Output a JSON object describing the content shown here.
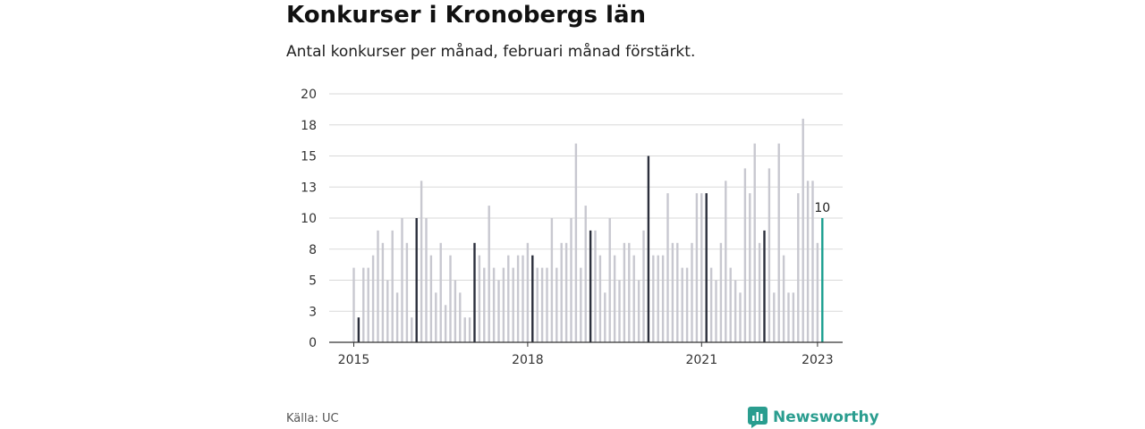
{
  "header": {
    "title": "Konkurser i Kronobergs län",
    "subtitle": "Antal konkurser per månad, februari månad förstärkt."
  },
  "footer": {
    "source": "Källa: UC",
    "brand": "Newsworthy"
  },
  "colors": {
    "bar": "#c8c8d0",
    "highlight": "#2b2f3c",
    "latest": "#1a9e8f",
    "grid": "#d9d9d9",
    "axis": "#333333",
    "brand": "#2a9d8f"
  },
  "chart_data": {
    "type": "bar",
    "title": "Konkurser i Kronobergs län",
    "subtitle": "Antal konkurser per månad, februari månad förstärkt.",
    "xlabel": "",
    "ylabel": "",
    "ylim": [
      0,
      20
    ],
    "y_ticks": [
      "0",
      "3",
      "5",
      "8",
      "10",
      "13",
      "15",
      "18",
      "20"
    ],
    "x_tick_labels": [
      {
        "label": "2015",
        "index": 0
      },
      {
        "label": "2018",
        "index": 36
      },
      {
        "label": "2021",
        "index": 72
      },
      {
        "label": "2023",
        "index": 96
      }
    ],
    "start": "2015-01",
    "end": "2023-02",
    "highlight_rule": "February months drawn dark; latest month drawn in teal",
    "values": [
      6,
      2,
      6,
      6,
      7,
      9,
      8,
      5,
      9,
      4,
      10,
      8,
      2,
      10,
      13,
      10,
      7,
      4,
      8,
      3,
      7,
      5,
      4,
      2,
      2,
      8,
      7,
      6,
      11,
      6,
      5,
      6,
      7,
      6,
      7,
      7,
      8,
      7,
      6,
      6,
      6,
      10,
      6,
      8,
      8,
      10,
      16,
      6,
      11,
      9,
      9,
      7,
      4,
      10,
      7,
      5,
      8,
      8,
      7,
      5,
      9,
      15,
      7,
      7,
      7,
      12,
      8,
      8,
      6,
      6,
      8,
      12,
      12,
      12,
      6,
      5,
      8,
      13,
      6,
      5,
      4,
      14,
      12,
      16,
      8,
      9,
      14,
      4,
      16,
      7,
      4,
      4,
      12,
      18,
      13,
      13,
      8,
      10
    ],
    "highlight_indices": [
      1,
      13,
      25,
      37,
      49,
      61,
      73,
      85,
      97
    ],
    "latest_index": 97,
    "latest_label": "10",
    "grid": true
  }
}
